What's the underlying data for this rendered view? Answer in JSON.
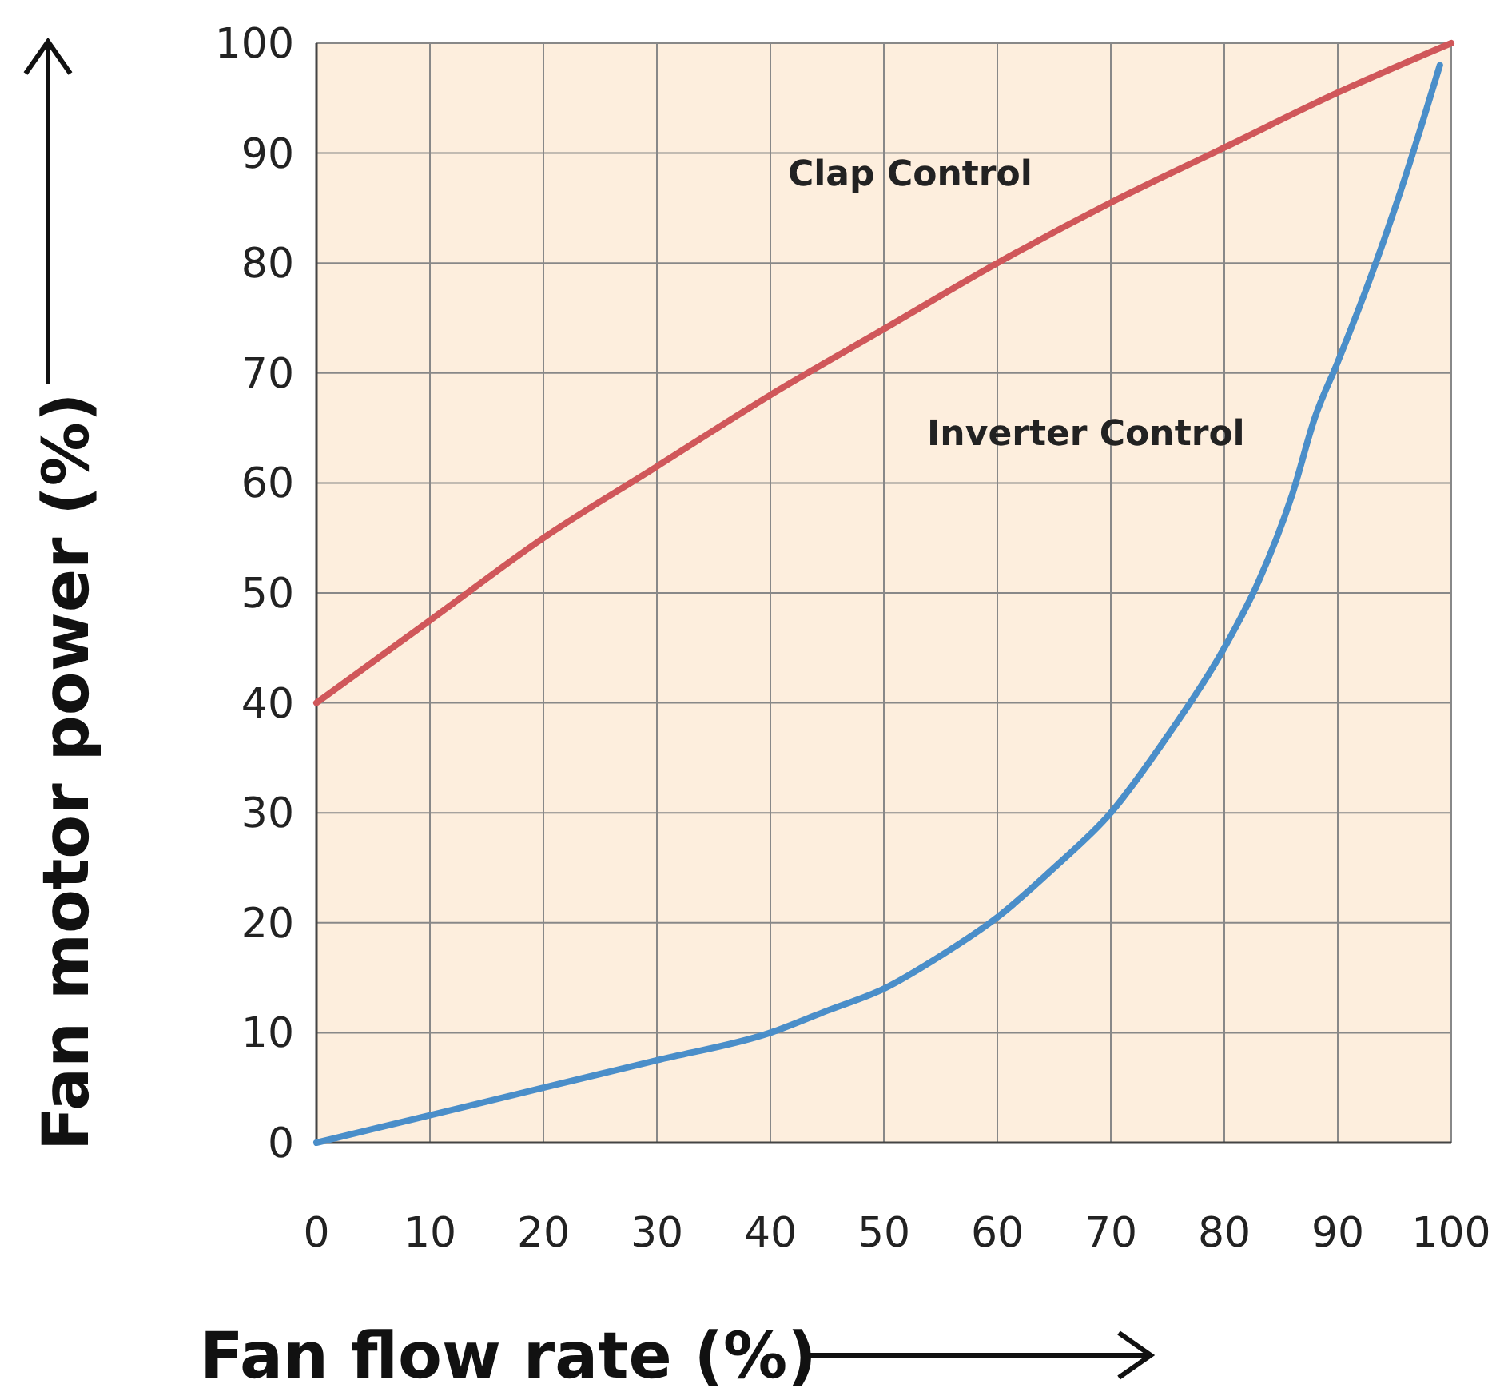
{
  "chart_data": {
    "type": "line",
    "xlabel": "Fan flow rate (%)",
    "ylabel": "Fan motor power (%)",
    "xlim": [
      0,
      100
    ],
    "ylim": [
      0,
      100
    ],
    "xticks": [
      0,
      10,
      20,
      30,
      40,
      50,
      60,
      70,
      80,
      90,
      100
    ],
    "yticks": [
      0,
      10,
      20,
      30,
      40,
      50,
      60,
      70,
      80,
      90,
      100
    ],
    "grid": true,
    "marker": "none",
    "line_style": "solid",
    "series": [
      {
        "name": "Clap Control",
        "color": "#d0575a",
        "x": [
          0,
          10,
          20,
          30,
          40,
          50,
          60,
          70,
          80,
          90,
          100
        ],
        "values": [
          40,
          47.5,
          55,
          61.5,
          68,
          74,
          80,
          85.5,
          90.5,
          95.5,
          100
        ]
      },
      {
        "name": "Inverter Control",
        "color": "#4a8ec9",
        "x": [
          0,
          10,
          20,
          30,
          40,
          45,
          50,
          55,
          60,
          65,
          70,
          75,
          80,
          83,
          86,
          88,
          90,
          93,
          96,
          99
        ],
        "values": [
          0,
          2.5,
          5,
          7.5,
          10,
          12,
          14,
          17,
          20.5,
          25,
          30,
          37,
          45,
          51,
          59,
          66,
          71,
          79,
          88,
          98
        ]
      }
    ]
  }
}
